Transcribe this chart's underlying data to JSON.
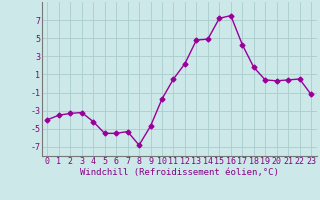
{
  "x": [
    0,
    1,
    2,
    3,
    4,
    5,
    6,
    7,
    8,
    9,
    10,
    11,
    12,
    13,
    14,
    15,
    16,
    17,
    18,
    19,
    20,
    21,
    22,
    23
  ],
  "y": [
    -4.0,
    -3.5,
    -3.3,
    -3.2,
    -4.2,
    -5.5,
    -5.5,
    -5.3,
    -6.8,
    -4.7,
    -1.7,
    0.5,
    2.2,
    4.8,
    4.9,
    7.2,
    7.5,
    4.3,
    1.8,
    0.4,
    0.3,
    0.4,
    0.5,
    -1.2
  ],
  "line_color": "#990099",
  "marker": "D",
  "markersize": 2.5,
  "linewidth": 1.0,
  "xlabel": "Windchill (Refroidissement éolien,°C)",
  "ylabel": "",
  "title": "",
  "xlim": [
    -0.5,
    23.5
  ],
  "ylim": [
    -8,
    9
  ],
  "yticks": [
    -7,
    -5,
    -3,
    -1,
    1,
    3,
    5,
    7
  ],
  "xticks": [
    0,
    1,
    2,
    3,
    4,
    5,
    6,
    7,
    8,
    9,
    10,
    11,
    12,
    13,
    14,
    15,
    16,
    17,
    18,
    19,
    20,
    21,
    22,
    23
  ],
  "background_color": "#cce8e8",
  "grid_color": "#aacccc",
  "tick_label_color": "#880088",
  "xlabel_color": "#880088",
  "xlabel_fontsize": 6.5,
  "tick_fontsize": 6.0
}
